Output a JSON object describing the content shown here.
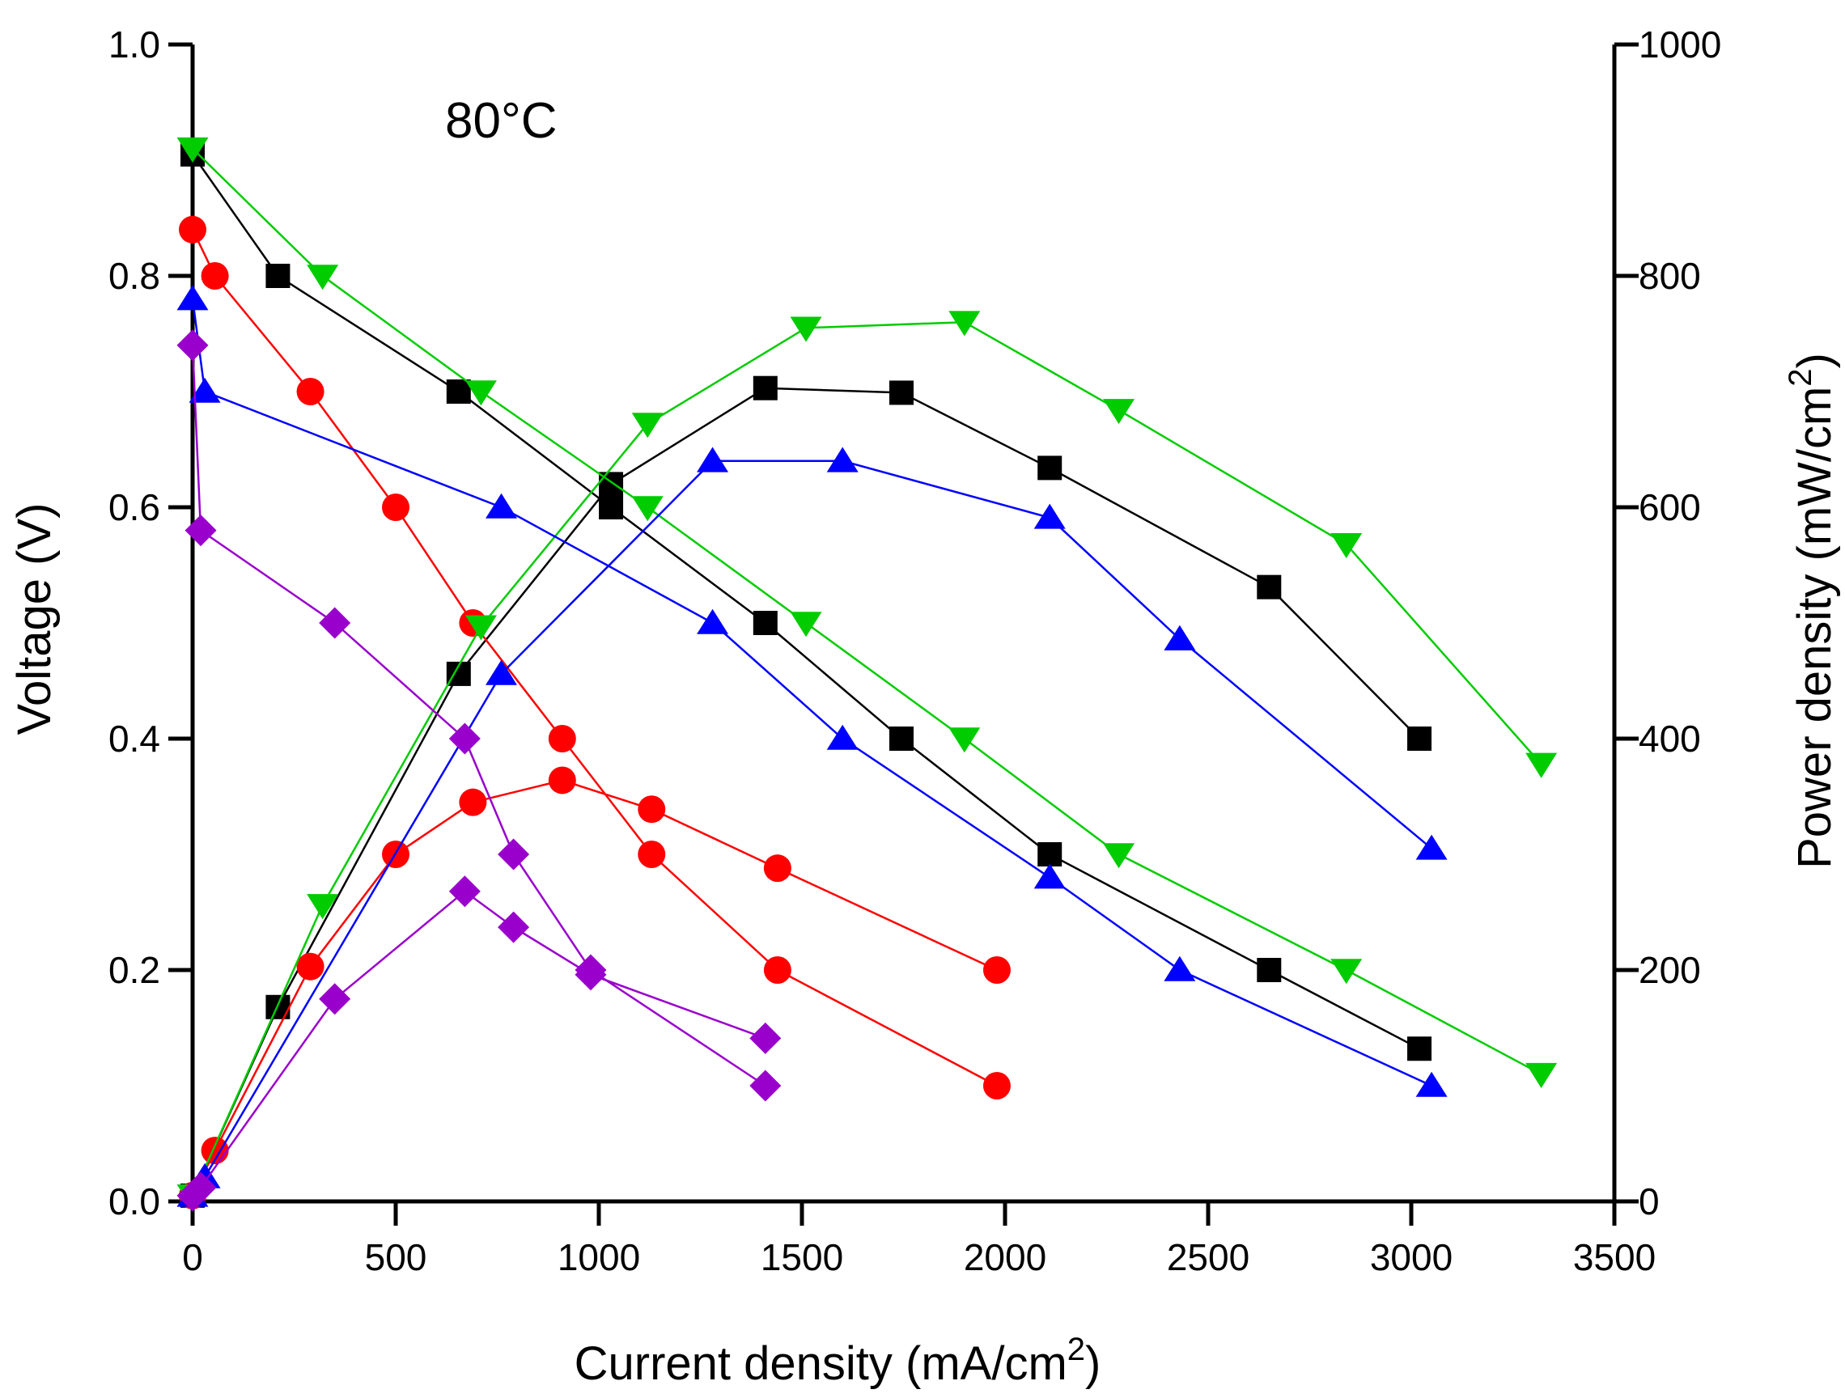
{
  "chart_data": {
    "type": "line",
    "annotation": "80°C",
    "xlabel": {
      "main": "Current density (mA/cm",
      "sup": "2",
      "end": ")"
    },
    "ylabel": "Voltage (V)",
    "y2label": {
      "main": "Power density (mW/cm",
      "sup": "2",
      "end": ")"
    },
    "xlim": [
      0,
      3500
    ],
    "ylim": [
      0,
      1.0
    ],
    "y2lim": [
      0,
      1000
    ],
    "xticks": [
      "0",
      "500",
      "1000",
      "1500",
      "2000",
      "2500",
      "3000",
      "3500"
    ],
    "yticks": [
      "0.0",
      "0.2",
      "0.4",
      "0.6",
      "0.8",
      "1.0"
    ],
    "y2ticks": [
      "0",
      "200",
      "400",
      "600",
      "800",
      "1000"
    ],
    "series": [
      {
        "name": "black",
        "color": "#000000",
        "marker": "square",
        "voltage": {
          "x": [
            0,
            210,
            655,
            1030,
            1410,
            1745,
            2110,
            2650,
            3020
          ],
          "y": [
            0.905,
            0.8,
            0.7,
            0.6,
            0.5,
            0.4,
            0.3,
            0.2,
            0.132
          ]
        },
        "power": {
          "x": [
            0,
            210,
            655,
            1030,
            1410,
            1745,
            2110,
            2650,
            3020
          ],
          "y": [
            5,
            168,
            456,
            620,
            703,
            699,
            634,
            531,
            400
          ]
        }
      },
      {
        "name": "red",
        "color": "#ff0000",
        "marker": "circle",
        "voltage": {
          "x": [
            0,
            55,
            290,
            500,
            690,
            910,
            1130,
            1440,
            1980
          ],
          "y": [
            0.84,
            0.8,
            0.7,
            0.6,
            0.5,
            0.4,
            0.3,
            0.2,
            0.1
          ]
        },
        "power": {
          "x": [
            0,
            55,
            290,
            500,
            690,
            910,
            1130,
            1440,
            1980
          ],
          "y": [
            5,
            44,
            203,
            300,
            345,
            364,
            339,
            288,
            200
          ]
        }
      },
      {
        "name": "green",
        "color": "#00cc00",
        "marker": "triangle-down",
        "voltage": {
          "x": [
            0,
            320,
            710,
            1120,
            1510,
            1900,
            2280,
            2840,
            3320
          ],
          "y": [
            0.91,
            0.8,
            0.7,
            0.6,
            0.5,
            0.4,
            0.3,
            0.2,
            0.11
          ]
        },
        "power": {
          "x": [
            0,
            320,
            710,
            1120,
            1510,
            1900,
            2280,
            2840,
            3320
          ],
          "y": [
            5,
            256,
            497,
            672,
            755,
            760,
            684,
            568,
            378
          ]
        }
      },
      {
        "name": "blue",
        "color": "#0000ff",
        "marker": "triangle-up",
        "voltage": {
          "x": [
            0,
            30,
            760,
            1280,
            1600,
            2110,
            2430,
            3050
          ],
          "y": [
            0.78,
            0.7,
            0.6,
            0.5,
            0.4,
            0.28,
            0.2,
            0.1
          ]
        },
        "power": {
          "x": [
            0,
            30,
            760,
            1280,
            1600,
            2110,
            2430,
            3050
          ],
          "y": [
            5,
            21,
            456,
            640,
            640,
            591,
            486,
            305
          ]
        }
      },
      {
        "name": "purple",
        "color": "#9900cc",
        "marker": "diamond",
        "voltage": {
          "x": [
            0,
            20,
            350,
            670,
            790,
            980,
            1410
          ],
          "y": [
            0.74,
            0.58,
            0.5,
            0.4,
            0.3,
            0.2,
            0.1
          ]
        },
        "power": {
          "x": [
            0,
            20,
            350,
            670,
            790,
            980,
            1410
          ],
          "y": [
            5,
            12,
            175,
            268,
            237,
            196,
            141
          ]
        }
      }
    ]
  }
}
